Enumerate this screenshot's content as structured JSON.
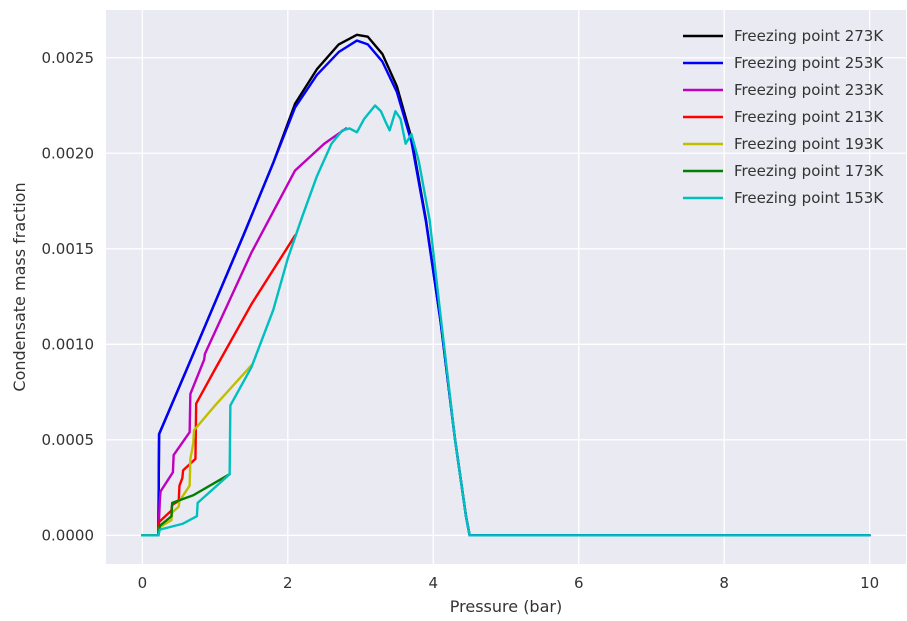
{
  "chart_data": {
    "type": "line",
    "title": "",
    "xlabel": "Pressure (bar)",
    "ylabel": "Condensate mass fraction",
    "xlim": [
      -0.5,
      10.5
    ],
    "ylim": [
      -0.00015,
      0.00275
    ],
    "xticks": [
      0,
      2,
      4,
      6,
      8,
      10
    ],
    "yticks": [
      0.0,
      0.0005,
      0.001,
      0.0015,
      0.002,
      0.0025
    ],
    "xtick_labels": [
      "0",
      "2",
      "4",
      "6",
      "8",
      "10"
    ],
    "ytick_labels": [
      "0.0000",
      "0.0005",
      "0.0010",
      "0.0015",
      "0.0020",
      "0.0025"
    ],
    "grid": true,
    "legend_position": "top-right",
    "series": [
      {
        "name": "Freezing point 273K",
        "color": "#000000",
        "points": [
          [
            0,
            0
          ],
          [
            0.22,
            0
          ],
          [
            0.23,
            0.00053
          ],
          [
            0.6,
            0.00086
          ],
          [
            1.0,
            0.00122
          ],
          [
            1.4,
            0.00158
          ],
          [
            1.8,
            0.00195
          ],
          [
            2.1,
            0.00226
          ],
          [
            2.4,
            0.00244
          ],
          [
            2.7,
            0.00257
          ],
          [
            2.95,
            0.00262
          ],
          [
            3.1,
            0.00261
          ],
          [
            3.3,
            0.00252
          ],
          [
            3.5,
            0.00235
          ],
          [
            3.7,
            0.00208
          ],
          [
            3.9,
            0.00165
          ],
          [
            4.1,
            0.00112
          ],
          [
            4.3,
            0.0005
          ],
          [
            4.45,
            0.0001
          ],
          [
            4.5,
            0
          ],
          [
            10,
            0
          ]
        ]
      },
      {
        "name": "Freezing point 253K",
        "color": "#0000ff",
        "points": [
          [
            0,
            0
          ],
          [
            0.22,
            0
          ],
          [
            0.23,
            0.00053
          ],
          [
            0.6,
            0.00086
          ],
          [
            1.0,
            0.00122
          ],
          [
            1.4,
            0.00158
          ],
          [
            1.8,
            0.00195
          ],
          [
            2.1,
            0.00224
          ],
          [
            2.4,
            0.00241
          ],
          [
            2.7,
            0.00253
          ],
          [
            2.95,
            0.00259
          ],
          [
            3.1,
            0.00257
          ],
          [
            3.3,
            0.00248
          ],
          [
            3.5,
            0.00232
          ],
          [
            3.7,
            0.00206
          ],
          [
            3.9,
            0.00164
          ],
          [
            4.1,
            0.00112
          ],
          [
            4.3,
            0.0005
          ],
          [
            4.45,
            0.0001
          ],
          [
            4.5,
            0
          ],
          [
            10,
            0
          ]
        ]
      },
      {
        "name": "Freezing point 233K",
        "color": "#bf00bf",
        "points": [
          [
            0,
            0
          ],
          [
            0.22,
            0
          ],
          [
            0.24,
            0.00018
          ],
          [
            0.25,
            0.00023
          ],
          [
            0.42,
            0.00033
          ],
          [
            0.43,
            0.00042
          ],
          [
            0.65,
            0.00054
          ],
          [
            0.66,
            0.00074
          ],
          [
            0.85,
            0.00092
          ],
          [
            0.86,
            0.00095
          ],
          [
            1.5,
            0.00148
          ],
          [
            2.1,
            0.00191
          ],
          [
            2.5,
            0.00205
          ],
          [
            2.8,
            0.00213
          ]
        ]
      },
      {
        "name": "Freezing point 213K",
        "color": "#ff0000",
        "points": [
          [
            0,
            0
          ],
          [
            0.22,
            0
          ],
          [
            0.23,
            7e-05
          ],
          [
            0.4,
            0.00013
          ],
          [
            0.41,
            0.00016
          ],
          [
            0.5,
            0.00018
          ],
          [
            0.51,
            0.00026
          ],
          [
            0.55,
            0.0003
          ],
          [
            0.56,
            0.00034
          ],
          [
            0.73,
            0.0004
          ],
          [
            0.74,
            0.00069
          ],
          [
            1.0,
            0.00087
          ],
          [
            1.5,
            0.00121
          ],
          [
            2.1,
            0.00157
          ]
        ]
      },
      {
        "name": "Freezing point 193K",
        "color": "#bfbf00",
        "points": [
          [
            0,
            0
          ],
          [
            0.22,
            0
          ],
          [
            0.23,
            4e-05
          ],
          [
            0.4,
            8e-05
          ],
          [
            0.41,
            0.00012
          ],
          [
            0.5,
            0.00015
          ],
          [
            0.51,
            0.00018
          ],
          [
            0.65,
            0.00026
          ],
          [
            0.66,
            0.0004
          ],
          [
            0.7,
            0.00048
          ],
          [
            0.71,
            0.00055
          ],
          [
            1.0,
            0.00068
          ],
          [
            1.5,
            0.00089
          ]
        ]
      },
      {
        "name": "Freezing point 173K",
        "color": "#008000",
        "points": [
          [
            0,
            0
          ],
          [
            0.22,
            0
          ],
          [
            0.24,
            5e-05
          ],
          [
            0.4,
            0.0001
          ],
          [
            0.41,
            0.00017
          ],
          [
            0.7,
            0.00021
          ],
          [
            1.2,
            0.00032
          ]
        ]
      },
      {
        "name": "Freezing point 153K",
        "color": "#00bfbf",
        "points": [
          [
            0,
            0
          ],
          [
            0.22,
            0
          ],
          [
            0.24,
            3e-05
          ],
          [
            0.55,
            6e-05
          ],
          [
            0.75,
            0.0001
          ],
          [
            0.76,
            0.00017
          ],
          [
            1.2,
            0.00032
          ],
          [
            1.21,
            0.00068
          ],
          [
            1.5,
            0.00088
          ],
          [
            1.8,
            0.00118
          ],
          [
            2.0,
            0.00145
          ],
          [
            2.2,
            0.00167
          ],
          [
            2.4,
            0.00188
          ],
          [
            2.6,
            0.00205
          ],
          [
            2.75,
            0.00212
          ],
          [
            2.85,
            0.00213
          ],
          [
            2.95,
            0.00211
          ],
          [
            3.05,
            0.00218
          ],
          [
            3.2,
            0.00225
          ],
          [
            3.28,
            0.00222
          ],
          [
            3.35,
            0.00216
          ],
          [
            3.4,
            0.00212
          ],
          [
            3.48,
            0.00222
          ],
          [
            3.55,
            0.00218
          ],
          [
            3.62,
            0.00205
          ],
          [
            3.7,
            0.0021
          ],
          [
            3.8,
            0.00196
          ],
          [
            3.95,
            0.00165
          ],
          [
            4.1,
            0.00115
          ],
          [
            4.3,
            0.0005
          ],
          [
            4.45,
            0.0001
          ],
          [
            4.5,
            0
          ],
          [
            10,
            0
          ]
        ]
      }
    ]
  }
}
